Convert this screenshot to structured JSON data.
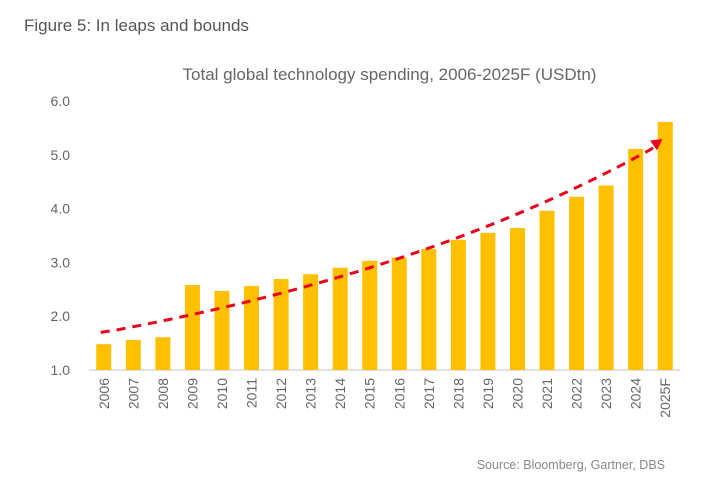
{
  "figure_label": "Figure 5: In leaps and bounds",
  "source": "Source: Bloomberg, Gartner, DBS",
  "colors": {
    "bar": "#FFC000",
    "trend": "#E8001C",
    "axis": "#D9D9D9",
    "text": "#666666"
  },
  "chart_data": {
    "type": "bar",
    "title": "Total global technology spending, 2006-2025F (USDtn)",
    "xlabel": "",
    "ylabel": "",
    "ylim": [
      1.0,
      6.0
    ],
    "yticks": [
      "1.0",
      "2.0",
      "3.0",
      "4.0",
      "5.0",
      "6.0"
    ],
    "grid": false,
    "categories": [
      "2006",
      "2007",
      "2008",
      "2009",
      "2010",
      "2011",
      "2012",
      "2013",
      "2014",
      "2015",
      "2016",
      "2017",
      "2018",
      "2019",
      "2020",
      "2021",
      "2022",
      "2023",
      "2024",
      "2025F"
    ],
    "values": [
      1.48,
      1.56,
      1.61,
      2.58,
      2.47,
      2.56,
      2.69,
      2.78,
      2.9,
      3.03,
      3.09,
      3.25,
      3.42,
      3.55,
      3.64,
      3.96,
      4.22,
      4.43,
      5.11,
      5.61
    ],
    "trendline": {
      "type": "exponential",
      "start": 1.7,
      "end": 5.25,
      "style": "dashed arrow"
    }
  }
}
